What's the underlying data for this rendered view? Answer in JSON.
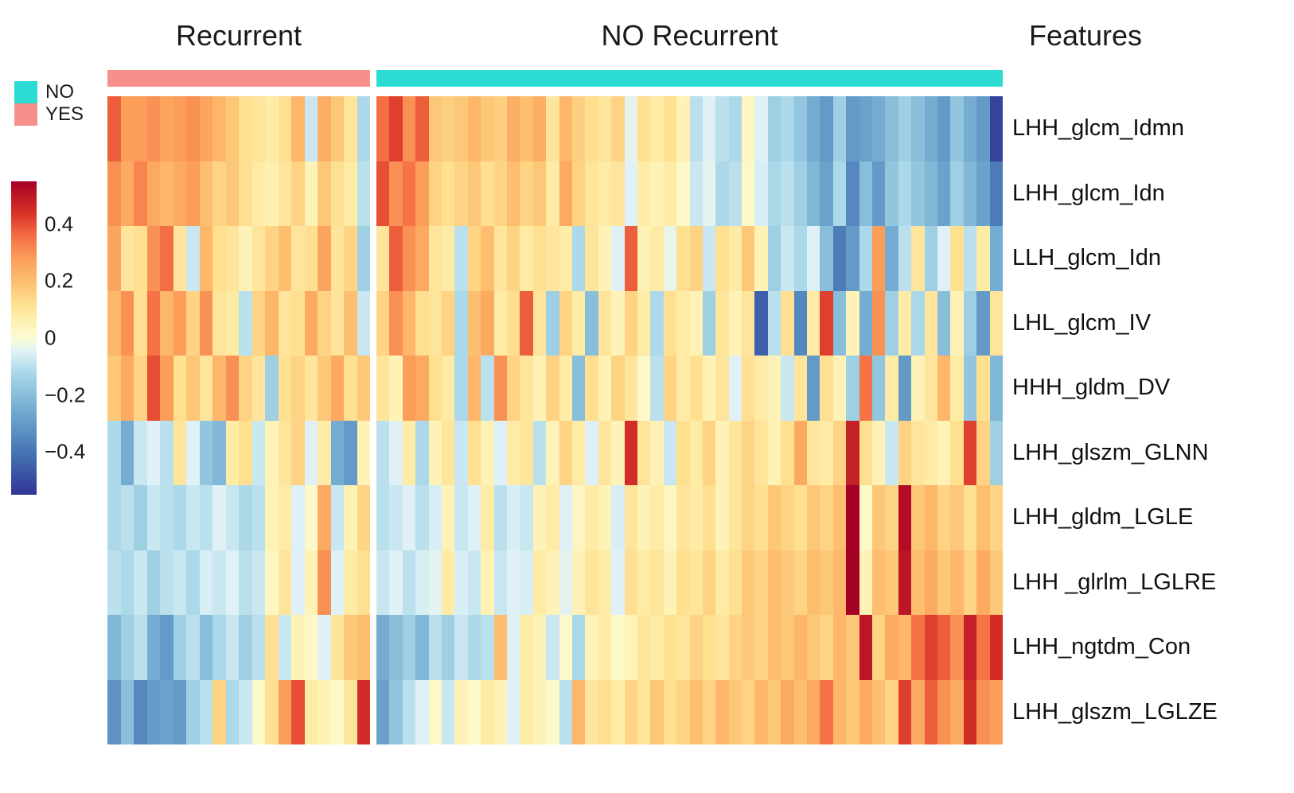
{
  "figure": {
    "titles": {
      "recurrent": "Recurrent",
      "no_recurrent": "NO Recurrent",
      "features": "Features"
    },
    "legend": {
      "items": [
        {
          "label": "NO",
          "color": "#2BDCD4"
        },
        {
          "label": "YES",
          "color": "#F7908A"
        }
      ]
    },
    "colorbar": {
      "tick_labels": [
        "0.4",
        "0.2",
        "0",
        "−0.2",
        "−0.4"
      ],
      "tick_values": [
        0.4,
        0.2,
        0,
        -0.2,
        -0.4
      ],
      "vmin": -0.55,
      "vmax": 0.55
    }
  },
  "chart_data": {
    "type": "heatmap",
    "title": "",
    "xlabel": "",
    "ylabel": "Features",
    "legend_position": "top-left",
    "grid": false,
    "value_range": [
      -0.55,
      0.55
    ],
    "column_groups": [
      {
        "name": "Recurrent",
        "annotation": "YES",
        "color": "#F7908A",
        "n_columns": 20
      },
      {
        "name": "NO Recurrent",
        "annotation": "NO",
        "color": "#2BDCD4",
        "n_columns": 48
      }
    ],
    "rows": [
      "LHH_glcm_Idmn",
      "LHH_glcm_Idn",
      "LLH_glcm_Idn",
      "LHL_glcm_IV",
      "HHH_gldm_DV",
      "LHH_glszm_GLNN",
      "LHH_gldm_LGLE",
      "LHH _glrlm_LGLRE",
      "LHH_ngtdm_Con",
      "LHH_glszm_LGLZE"
    ],
    "colormap_stops": [
      {
        "v": -0.55,
        "c": "#313695"
      },
      {
        "v": -0.4,
        "c": "#4575b4"
      },
      {
        "v": -0.25,
        "c": "#74add1"
      },
      {
        "v": -0.12,
        "c": "#abd9e9"
      },
      {
        "v": -0.05,
        "c": "#dff1f7"
      },
      {
        "v": 0.0,
        "c": "#fbfcd4"
      },
      {
        "v": 0.06,
        "c": "#fef0b0"
      },
      {
        "v": 0.12,
        "c": "#fee090"
      },
      {
        "v": 0.2,
        "c": "#fdbe70"
      },
      {
        "v": 0.28,
        "c": "#fc9d59"
      },
      {
        "v": 0.36,
        "c": "#f46d43"
      },
      {
        "v": 0.44,
        "c": "#d73027"
      },
      {
        "v": 0.55,
        "c": "#a50026"
      }
    ],
    "values_recurrent": [
      [
        0.38,
        0.28,
        0.28,
        0.3,
        0.26,
        0.28,
        0.3,
        0.26,
        0.22,
        0.18,
        0.12,
        0.1,
        0.08,
        0.12,
        0.22,
        -0.08,
        0.24,
        0.18,
        0.1,
        -0.12
      ],
      [
        0.3,
        0.25,
        0.32,
        0.25,
        0.22,
        0.25,
        0.28,
        0.2,
        0.15,
        0.18,
        0.12,
        0.08,
        0.06,
        0.1,
        0.15,
        0.05,
        0.18,
        0.12,
        0.08,
        -0.1
      ],
      [
        0.26,
        0.1,
        0.12,
        0.3,
        0.36,
        0.1,
        -0.08,
        0.22,
        0.12,
        0.1,
        0.05,
        0.1,
        0.15,
        0.2,
        0.1,
        0.12,
        0.26,
        0.1,
        0.15,
        -0.15
      ],
      [
        0.22,
        0.3,
        0.12,
        0.35,
        0.22,
        0.28,
        0.15,
        0.3,
        0.1,
        0.08,
        -0.1,
        0.15,
        0.22,
        0.1,
        0.12,
        0.25,
        0.15,
        0.1,
        0.2,
        -0.08
      ],
      [
        0.18,
        0.25,
        0.15,
        0.4,
        0.28,
        0.12,
        0.18,
        0.1,
        0.22,
        0.3,
        0.15,
        0.1,
        -0.15,
        0.12,
        0.15,
        0.1,
        0.18,
        0.25,
        0.12,
        0.18
      ],
      [
        -0.12,
        -0.25,
        -0.08,
        -0.05,
        -0.1,
        0.1,
        -0.05,
        -0.18,
        -0.22,
        0.08,
        0.12,
        -0.08,
        0.05,
        0.1,
        0.15,
        -0.05,
        0.08,
        -0.25,
        -0.3,
        0.05
      ],
      [
        -0.12,
        -0.1,
        -0.15,
        -0.08,
        -0.1,
        -0.12,
        -0.08,
        -0.1,
        -0.05,
        -0.08,
        -0.12,
        -0.1,
        0.05,
        0.08,
        -0.05,
        0.02,
        0.25,
        -0.08,
        0.05,
        0.15
      ],
      [
        -0.1,
        -0.12,
        -0.08,
        -0.15,
        -0.1,
        -0.08,
        -0.12,
        -0.06,
        -0.08,
        -0.05,
        -0.1,
        -0.08,
        0.03,
        0.1,
        -0.05,
        0.05,
        0.3,
        -0.05,
        0.08,
        0.12
      ],
      [
        -0.22,
        -0.15,
        -0.1,
        -0.25,
        -0.3,
        -0.15,
        -0.1,
        -0.2,
        -0.12,
        -0.08,
        -0.15,
        -0.1,
        0.12,
        -0.08,
        0.05,
        0.02,
        -0.05,
        0.1,
        0.18,
        0.2
      ],
      [
        -0.32,
        -0.2,
        -0.35,
        -0.3,
        -0.28,
        -0.3,
        -0.15,
        -0.1,
        0.15,
        -0.12,
        -0.08,
        0.02,
        0.12,
        0.28,
        0.4,
        0.08,
        0.05,
        0.02,
        0.1,
        0.45
      ]
    ],
    "values_no_recurrent": [
      [
        0.36,
        0.42,
        0.3,
        0.38,
        0.18,
        0.16,
        0.18,
        0.22,
        0.18,
        0.16,
        0.24,
        0.2,
        0.24,
        0.1,
        0.22,
        0.16,
        0.12,
        0.1,
        0.15,
        -0.04,
        0.12,
        0.08,
        0.12,
        0.05,
        -0.1,
        -0.05,
        -0.1,
        -0.12,
        0.03,
        -0.05,
        -0.15,
        -0.12,
        -0.18,
        -0.25,
        -0.3,
        -0.15,
        -0.3,
        -0.28,
        -0.25,
        -0.2,
        -0.15,
        -0.2,
        -0.25,
        -0.3,
        -0.18,
        -0.25,
        -0.3,
        -0.52
      ],
      [
        0.4,
        0.3,
        0.35,
        0.28,
        0.15,
        0.12,
        0.15,
        0.18,
        0.12,
        0.15,
        0.2,
        0.15,
        0.18,
        0.08,
        0.25,
        0.15,
        0.1,
        0.08,
        0.1,
        -0.05,
        0.08,
        0.05,
        0.08,
        0.02,
        -0.08,
        -0.04,
        -0.12,
        -0.1,
        0.02,
        -0.06,
        -0.12,
        -0.1,
        -0.15,
        -0.22,
        -0.28,
        -0.12,
        -0.35,
        -0.2,
        -0.3,
        -0.18,
        -0.12,
        -0.18,
        -0.22,
        -0.28,
        -0.15,
        -0.22,
        -0.28,
        -0.38
      ],
      [
        0.1,
        0.38,
        0.3,
        0.25,
        0.1,
        0.08,
        -0.1,
        0.15,
        0.2,
        0.1,
        0.15,
        0.08,
        0.12,
        0.1,
        0.08,
        -0.12,
        0.1,
        0.05,
        -0.05,
        0.38,
        0.05,
        0.08,
        -0.03,
        0.12,
        0.15,
        -0.08,
        0.12,
        0.08,
        0.18,
        0.05,
        -0.15,
        -0.08,
        -0.12,
        -0.05,
        -0.2,
        -0.38,
        -0.3,
        -0.12,
        0.28,
        -0.25,
        -0.1,
        0.1,
        -0.15,
        -0.05,
        0.12,
        -0.1,
        0.08,
        -0.25
      ],
      [
        0.15,
        0.3,
        0.22,
        0.12,
        0.1,
        0.15,
        -0.12,
        0.2,
        0.25,
        0.08,
        0.12,
        0.38,
        0.1,
        -0.15,
        0.15,
        0.08,
        -0.2,
        0.1,
        0.05,
        0.15,
        0.08,
        -0.12,
        0.12,
        0.08,
        0.05,
        -0.15,
        0.1,
        0.05,
        0.1,
        -0.45,
        -0.1,
        0.12,
        -0.35,
        0.08,
        0.42,
        -0.2,
        0.05,
        -0.25,
        0.3,
        -0.15,
        0.08,
        -0.12,
        0.1,
        -0.2,
        0.05,
        -0.15,
        -0.3,
        0.1
      ],
      [
        0.1,
        0.05,
        0.28,
        0.25,
        0.12,
        0.08,
        -0.12,
        0.22,
        -0.1,
        0.3,
        0.15,
        0.1,
        0.05,
        0.15,
        0.08,
        -0.2,
        0.12,
        0.05,
        0.15,
        0.1,
        0.02,
        -0.1,
        0.15,
        0.08,
        0.12,
        0.05,
        0.1,
        -0.05,
        0.12,
        0.08,
        0.05,
        -0.08,
        0.1,
        -0.3,
        0.12,
        0.05,
        -0.15,
        0.35,
        -0.18,
        0.08,
        -0.3,
        0.05,
        0.1,
        0.22,
        0.08,
        -0.18,
        0.12,
        -0.22
      ],
      [
        -0.1,
        -0.05,
        0.08,
        -0.12,
        0.05,
        0.1,
        -0.08,
        0.12,
        0.05,
        -0.05,
        0.08,
        0.1,
        -0.1,
        0.05,
        0.15,
        0.08,
        -0.05,
        0.1,
        0.05,
        0.45,
        0.1,
        0.05,
        -0.08,
        0.12,
        0.08,
        0.15,
        0.05,
        0.1,
        0.15,
        0.1,
        0.05,
        0.12,
        0.25,
        0.1,
        0.08,
        0.15,
        0.48,
        0.12,
        0.05,
        -0.08,
        0.15,
        0.1,
        0.08,
        0.05,
        0.12,
        0.42,
        0.15,
        -0.15
      ],
      [
        -0.1,
        -0.08,
        -0.05,
        -0.1,
        -0.06,
        0.05,
        -0.08,
        -0.05,
        0.08,
        -0.1,
        -0.06,
        -0.08,
        0.05,
        0.08,
        -0.05,
        0.03,
        0.08,
        0.05,
        -0.06,
        0.1,
        0.05,
        0.08,
        0.03,
        0.1,
        0.08,
        0.12,
        0.05,
        0.1,
        0.15,
        0.12,
        0.18,
        0.15,
        0.12,
        0.18,
        0.15,
        0.2,
        0.55,
        0.02,
        0.18,
        0.15,
        0.52,
        0.18,
        0.22,
        0.15,
        0.18,
        0.12,
        0.2,
        0.15
      ],
      [
        -0.08,
        -0.05,
        -0.1,
        -0.06,
        -0.04,
        0.08,
        -0.06,
        -0.08,
        0.05,
        -0.08,
        -0.05,
        -0.06,
        0.08,
        0.05,
        -0.04,
        0.05,
        0.1,
        0.08,
        -0.05,
        0.12,
        0.08,
        0.1,
        0.05,
        0.12,
        0.1,
        0.15,
        0.08,
        0.12,
        0.18,
        0.15,
        0.2,
        0.18,
        0.15,
        0.2,
        0.18,
        0.22,
        0.55,
        0.05,
        0.2,
        0.18,
        0.5,
        0.2,
        0.25,
        0.18,
        0.22,
        0.15,
        0.25,
        0.18
      ],
      [
        -0.25,
        -0.2,
        -0.15,
        -0.22,
        -0.1,
        -0.15,
        -0.08,
        -0.12,
        -0.1,
        0.2,
        -0.05,
        0.08,
        0.05,
        -0.08,
        0.02,
        -0.12,
        0.05,
        0.08,
        0.02,
        0.05,
        0.1,
        0.08,
        0.12,
        0.1,
        0.15,
        0.12,
        0.1,
        0.15,
        0.18,
        0.15,
        0.2,
        0.18,
        0.22,
        0.18,
        0.15,
        0.22,
        0.18,
        0.5,
        0.15,
        0.25,
        0.22,
        0.35,
        0.42,
        0.38,
        0.3,
        0.48,
        0.35,
        0.45
      ],
      [
        -0.28,
        -0.18,
        -0.1,
        -0.05,
        0.02,
        -0.08,
        0.05,
        0.02,
        0.08,
        0.05,
        -0.05,
        0.08,
        0.05,
        0.02,
        -0.1,
        0.22,
        0.1,
        0.12,
        0.08,
        0.15,
        0.1,
        0.18,
        0.12,
        0.15,
        0.2,
        0.15,
        0.22,
        0.18,
        0.15,
        0.22,
        0.18,
        0.25,
        0.2,
        0.25,
        0.35,
        0.22,
        0.18,
        0.25,
        0.2,
        0.15,
        0.42,
        0.25,
        0.38,
        0.3,
        0.25,
        0.45,
        0.3,
        0.28
      ]
    ]
  }
}
